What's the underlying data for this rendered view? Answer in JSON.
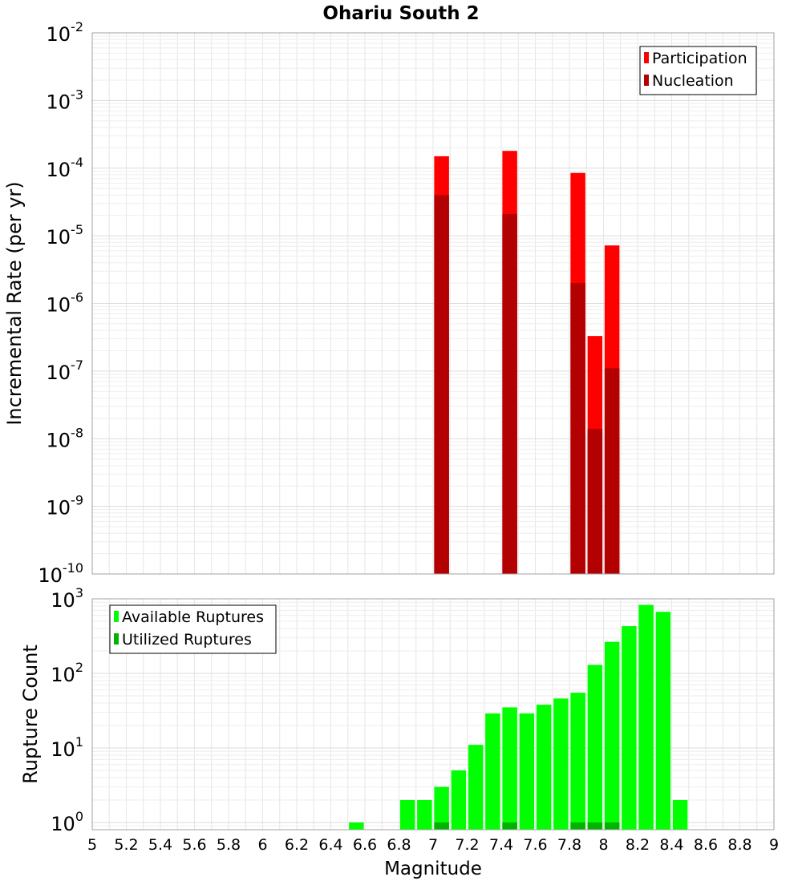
{
  "chart_data": [
    {
      "type": "bar",
      "title": "Ohariu South 2",
      "xlabel": "",
      "ylabel": "Incremental Rate (per yr)",
      "y_scale": "log",
      "ylim": [
        1e-10,
        0.01
      ],
      "xlim": [
        5,
        9
      ],
      "y_tick_exponents": [
        "-2",
        "-3",
        "-4",
        "-5",
        "-6",
        "-7",
        "-8",
        "-9",
        "-10"
      ],
      "grid": true,
      "legend_position": "top-right",
      "series": [
        {
          "name": "Participation",
          "color": "#ff0000",
          "points": [
            {
              "x": 7.05,
              "y": 0.00015
            },
            {
              "x": 7.45,
              "y": 0.00018
            },
            {
              "x": 7.85,
              "y": 8.5e-05
            },
            {
              "x": 7.95,
              "y": 3.3e-07
            },
            {
              "x": 8.05,
              "y": 7.2e-06
            }
          ]
        },
        {
          "name": "Nucleation",
          "color": "#b30000",
          "points": [
            {
              "x": 7.05,
              "y": 4e-05
            },
            {
              "x": 7.45,
              "y": 2.1e-05
            },
            {
              "x": 7.85,
              "y": 2e-06
            },
            {
              "x": 7.95,
              "y": 1.4e-08
            },
            {
              "x": 8.05,
              "y": 1.1e-07
            }
          ]
        }
      ]
    },
    {
      "type": "bar",
      "title": "",
      "xlabel": "Magnitude",
      "ylabel": "Rupture Count",
      "y_scale": "log",
      "ylim": [
        0.8,
        1000
      ],
      "xlim": [
        5,
        9
      ],
      "x_ticks": [
        "5",
        "5.2",
        "5.4",
        "5.6",
        "5.8",
        "6",
        "6.2",
        "6.4",
        "6.6",
        "6.8",
        "7",
        "7.2",
        "7.4",
        "7.6",
        "7.8",
        "8",
        "8.2",
        "8.4",
        "8.6",
        "8.8",
        "9"
      ],
      "y_tick_exponents": [
        "3",
        "2",
        "1",
        "0"
      ],
      "grid": true,
      "legend_position": "top-left",
      "series": [
        {
          "name": "Available Ruptures",
          "color": "#00ff00",
          "points": [
            {
              "x": 6.55,
              "y": 1
            },
            {
              "x": 6.85,
              "y": 2
            },
            {
              "x": 6.95,
              "y": 2
            },
            {
              "x": 7.05,
              "y": 3
            },
            {
              "x": 7.15,
              "y": 5
            },
            {
              "x": 7.25,
              "y": 11
            },
            {
              "x": 7.35,
              "y": 29
            },
            {
              "x": 7.45,
              "y": 35
            },
            {
              "x": 7.55,
              "y": 29
            },
            {
              "x": 7.65,
              "y": 38
            },
            {
              "x": 7.75,
              "y": 46
            },
            {
              "x": 7.85,
              "y": 55
            },
            {
              "x": 7.95,
              "y": 130
            },
            {
              "x": 8.05,
              "y": 265
            },
            {
              "x": 8.15,
              "y": 430
            },
            {
              "x": 8.25,
              "y": 830
            },
            {
              "x": 8.35,
              "y": 670
            },
            {
              "x": 8.45,
              "y": 2
            }
          ]
        },
        {
          "name": "Utilized Ruptures",
          "color": "#00b300",
          "points": [
            {
              "x": 7.05,
              "y": 1
            },
            {
              "x": 7.45,
              "y": 1
            },
            {
              "x": 7.85,
              "y": 1
            },
            {
              "x": 7.95,
              "y": 1
            },
            {
              "x": 8.05,
              "y": 1
            }
          ]
        }
      ]
    }
  ]
}
